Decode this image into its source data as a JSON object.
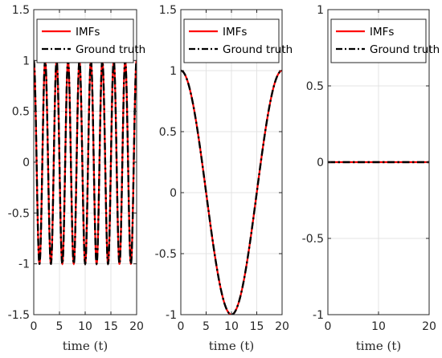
{
  "chart_data": [
    {
      "type": "line",
      "xlabel": "time (t)",
      "ylabel": "",
      "xlim": [
        0,
        20
      ],
      "ylim": [
        -1.5,
        1.5
      ],
      "xticks": [
        0,
        5,
        10,
        15,
        20
      ],
      "yticks": [
        -1.5,
        -1,
        -0.5,
        0,
        0.5,
        1,
        1.5
      ],
      "ytick_labels": [
        "-1.5",
        "-1",
        "-0.5",
        "0",
        "0.5",
        "1",
        "1.5"
      ],
      "grid": true,
      "legend_position": "top-left",
      "series": [
        {
          "name": "IMFs",
          "color": "#ff0000",
          "style": "solid",
          "function": "cos(2*pi*0.45*t)",
          "amplitude": 1,
          "frequency": 0.45
        },
        {
          "name": "Ground truth",
          "color": "#000000",
          "style": "dash-dot",
          "function": "cos(2*pi*0.45*t)",
          "amplitude": 1,
          "frequency": 0.45
        }
      ]
    },
    {
      "type": "line",
      "xlabel": "time (t)",
      "ylabel": "",
      "xlim": [
        0,
        20
      ],
      "ylim": [
        -1,
        1.5
      ],
      "xticks": [
        0,
        5,
        10,
        15,
        20
      ],
      "yticks": [
        -1,
        -0.5,
        0,
        0.5,
        1,
        1.5
      ],
      "ytick_labels": [
        "-1",
        "-0.5",
        "0",
        "0.5",
        "1",
        "1.5"
      ],
      "grid": true,
      "legend_position": "top-left",
      "series": [
        {
          "name": "IMFs",
          "color": "#ff0000",
          "style": "solid",
          "function": "cos(2*pi*0.05*t)",
          "amplitude": 1,
          "frequency": 0.05
        },
        {
          "name": "Ground truth",
          "color": "#000000",
          "style": "dash-dot",
          "function": "cos(2*pi*0.05*t)",
          "amplitude": 1,
          "frequency": 0.05
        }
      ]
    },
    {
      "type": "line",
      "xlabel": "time (t)",
      "ylabel": "",
      "xlim": [
        0,
        20
      ],
      "ylim": [
        -1,
        1
      ],
      "xticks": [
        0,
        10,
        20
      ],
      "yticks": [
        -1,
        -0.5,
        0,
        0.5,
        1
      ],
      "ytick_labels": [
        "-1",
        "-0.5",
        "0",
        "0.5",
        "1"
      ],
      "grid": true,
      "legend_position": "top-left",
      "series": [
        {
          "name": "IMFs",
          "color": "#ff0000",
          "style": "solid",
          "function": "0",
          "amplitude": 0,
          "frequency": 0
        },
        {
          "name": "Ground truth",
          "color": "#000000",
          "style": "dash-dot",
          "function": "0",
          "amplitude": 0,
          "frequency": 0
        }
      ]
    }
  ]
}
